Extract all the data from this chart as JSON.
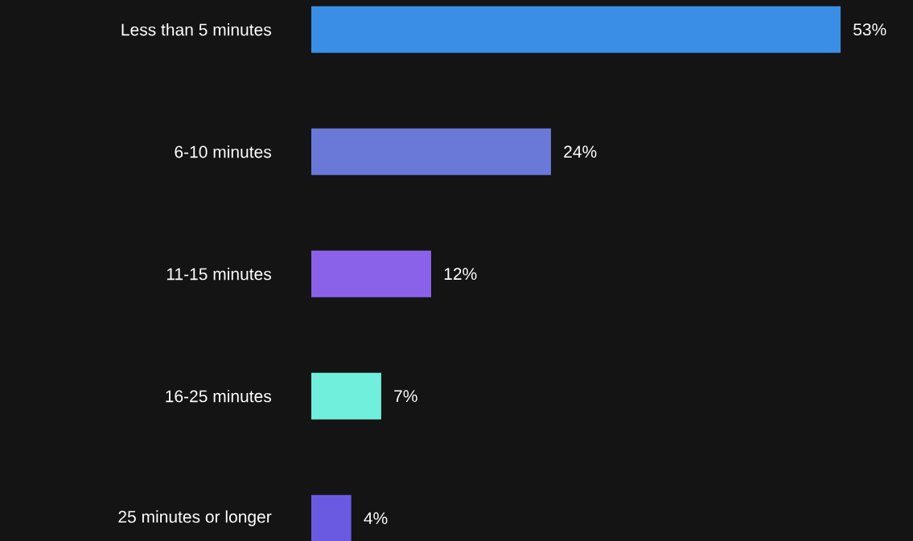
{
  "chart_data": {
    "type": "bar",
    "orientation": "horizontal",
    "categories": [
      "Less than 5 minutes",
      "6-10 minutes",
      "11-15 minutes",
      "16-25 minutes",
      "25 minutes or longer"
    ],
    "values": [
      53,
      24,
      12,
      7,
      4
    ],
    "colors": [
      "#3a8ee6",
      "#6a78d8",
      "#8a62ea",
      "#70f0dc",
      "#6a5ae2"
    ],
    "value_labels": [
      "53%",
      "24%",
      "12%",
      "7%",
      "4%"
    ]
  }
}
